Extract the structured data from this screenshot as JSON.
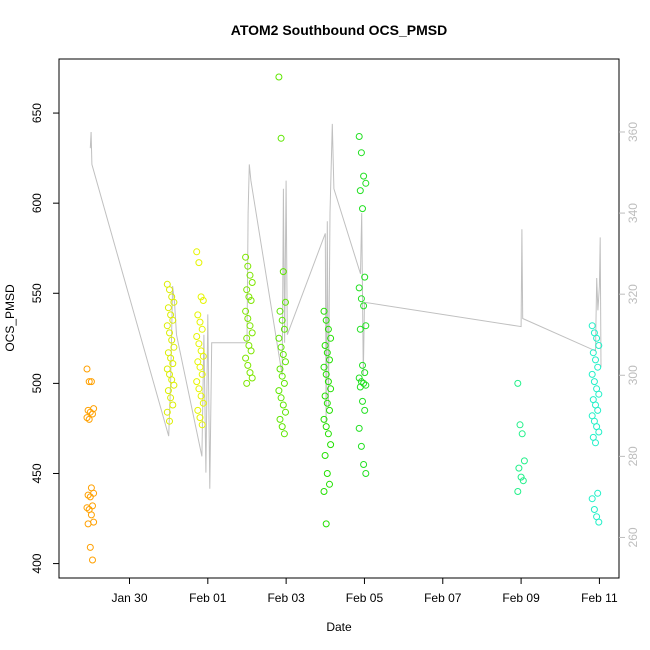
{
  "chart_data": {
    "type": "scatter",
    "title": "ATOM2 Southbound OCS_PMSD",
    "xlabel": "Date",
    "ylabel": "OCS_PMSD",
    "x_ticks": [
      "Jan 30",
      "Feb 01",
      "Feb 03",
      "Feb 05",
      "Feb 07",
      "Feb 09",
      "Feb 11"
    ],
    "x_tick_day": [
      1,
      3,
      5,
      7,
      9,
      11,
      13
    ],
    "xlim_day": [
      -0.8,
      13.5
    ],
    "ylim": [
      392,
      680
    ],
    "y_ticks": [
      400,
      450,
      500,
      550,
      600,
      650
    ],
    "y2lim": [
      250,
      378
    ],
    "y2_ticks": [
      260,
      280,
      300,
      320,
      340,
      360
    ],
    "grid": false,
    "point_clusters": [
      {
        "day": 0.0,
        "color": "#ffa000",
        "values": [
          508,
          501,
          501,
          486,
          485,
          484,
          483,
          481,
          480,
          442,
          439,
          438,
          437,
          432,
          431,
          430,
          427,
          423,
          422,
          409,
          402
        ]
      },
      {
        "day": 2.05,
        "color": "#dcee00",
        "values": [
          555,
          552,
          548,
          545,
          542,
          538,
          535,
          532,
          528,
          524,
          520,
          517,
          514,
          511,
          508,
          505,
          502,
          499,
          496,
          492,
          488,
          484,
          479
        ]
      },
      {
        "day": 2.8,
        "color": "#e6f500",
        "values": [
          573,
          567,
          548,
          546,
          538,
          534,
          530,
          526,
          522,
          518,
          515,
          512,
          509,
          505,
          501,
          497,
          493,
          489,
          485,
          481,
          477
        ]
      },
      {
        "day": 4.05,
        "color": "#7ee600",
        "values": [
          570,
          565,
          560,
          556,
          552,
          548,
          546,
          540,
          536,
          532,
          528,
          525,
          521,
          518,
          514,
          510,
          506,
          503,
          500
        ]
      },
      {
        "day": 4.9,
        "color": "#5ee600",
        "values": [
          670,
          636,
          562,
          545,
          540,
          535,
          530,
          525,
          520,
          516,
          512,
          508,
          504,
          500,
          496,
          492,
          488,
          484,
          480,
          476,
          472
        ]
      },
      {
        "day": 6.05,
        "color": "#22e000",
        "values": [
          540,
          535,
          530,
          525,
          521,
          517,
          513,
          509,
          505,
          501,
          497,
          493,
          489,
          485,
          480,
          476,
          472,
          466,
          460,
          450,
          444,
          440,
          422
        ]
      },
      {
        "day": 6.95,
        "color": "#22e022",
        "values": [
          637,
          628,
          615,
          611,
          607,
          597,
          559,
          553,
          547,
          543,
          532,
          530,
          510,
          506,
          503,
          501,
          500,
          499,
          498,
          490,
          485,
          475,
          465,
          455,
          450
        ]
      },
      {
        "day": 11.0,
        "color": "#22f08a",
        "values": [
          500,
          477,
          472,
          457,
          453,
          448,
          446,
          440
        ]
      },
      {
        "day": 12.9,
        "color": "#22f0c8",
        "values": [
          532,
          528,
          525,
          521,
          517,
          513,
          509,
          505,
          501,
          497,
          494,
          491,
          488,
          485,
          482,
          479,
          476,
          473,
          470,
          467,
          439,
          436,
          430,
          426,
          423
        ]
      }
    ],
    "line_series": {
      "axis": "secondary",
      "color": "#c0c0c0",
      "points": [
        {
          "day": 0.0,
          "value": 356
        },
        {
          "day": 0.02,
          "value": 360
        },
        {
          "day": 0.04,
          "value": 352
        },
        {
          "day": 2.0,
          "value": 285
        },
        {
          "day": 2.05,
          "value": 298
        },
        {
          "day": 2.1,
          "value": 322
        },
        {
          "day": 2.15,
          "value": 318
        },
        {
          "day": 2.2,
          "value": 310
        },
        {
          "day": 2.85,
          "value": 280
        },
        {
          "day": 2.9,
          "value": 310
        },
        {
          "day": 2.95,
          "value": 276
        },
        {
          "day": 3.0,
          "value": 315
        },
        {
          "day": 3.05,
          "value": 272
        },
        {
          "day": 3.1,
          "value": 308
        },
        {
          "day": 4.0,
          "value": 308
        },
        {
          "day": 4.03,
          "value": 340
        },
        {
          "day": 4.06,
          "value": 352
        },
        {
          "day": 4.1,
          "value": 348
        },
        {
          "day": 4.9,
          "value": 300
        },
        {
          "day": 4.93,
          "value": 346
        },
        {
          "day": 4.96,
          "value": 308
        },
        {
          "day": 5.0,
          "value": 348
        },
        {
          "day": 5.03,
          "value": 310
        },
        {
          "day": 6.0,
          "value": 335
        },
        {
          "day": 6.02,
          "value": 288
        },
        {
          "day": 6.05,
          "value": 338
        },
        {
          "day": 6.08,
          "value": 292
        },
        {
          "day": 6.12,
          "value": 340
        },
        {
          "day": 6.18,
          "value": 362
        },
        {
          "day": 6.22,
          "value": 346
        },
        {
          "day": 6.9,
          "value": 325
        },
        {
          "day": 6.93,
          "value": 340
        },
        {
          "day": 6.97,
          "value": 300
        },
        {
          "day": 7.0,
          "value": 318
        },
        {
          "day": 11.0,
          "value": 312
        },
        {
          "day": 11.02,
          "value": 336
        },
        {
          "day": 11.04,
          "value": 314
        },
        {
          "day": 12.9,
          "value": 306
        },
        {
          "day": 12.93,
          "value": 324
        },
        {
          "day": 12.96,
          "value": 316
        },
        {
          "day": 13.0,
          "value": 322
        },
        {
          "day": 13.02,
          "value": 334
        },
        {
          "day": 13.04,
          "value": 302
        }
      ]
    }
  }
}
